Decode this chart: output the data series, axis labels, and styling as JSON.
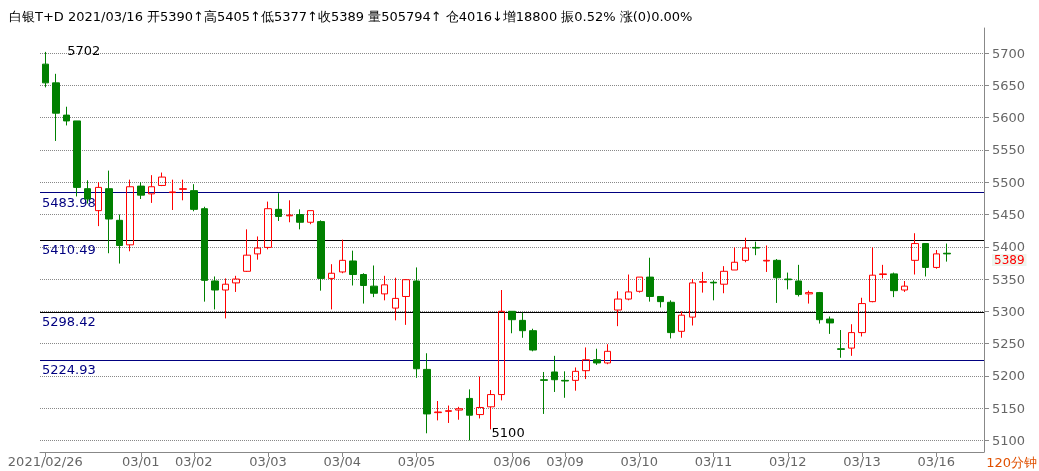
{
  "chart_data": {
    "type": "candlestick",
    "title": "白银T+D 2021/03/16 开5390↑高5405↑低5377↑收5389 量505794↑ 仓4016↓增18800 振0.52% 涨(0)0.00%",
    "categories": [
      "2021/02/26",
      null,
      null,
      null,
      null,
      null,
      null,
      null,
      null,
      "03/01",
      null,
      null,
      null,
      null,
      "03/02",
      null,
      null,
      null,
      null,
      null,
      null,
      "03/03",
      null,
      null,
      null,
      null,
      null,
      null,
      "03/04",
      null,
      null,
      null,
      null,
      null,
      null,
      "03/05",
      null,
      null,
      null,
      null,
      null,
      null,
      null,
      null,
      "03/06",
      null,
      null,
      null,
      null,
      "03/09",
      null,
      null,
      null,
      null,
      null,
      null,
      "03/10",
      null,
      null,
      null,
      null,
      null,
      null,
      "03/11",
      null,
      null,
      null,
      null,
      null,
      null,
      "03/12",
      null,
      null,
      null,
      null,
      null,
      null,
      "03/13",
      null,
      null,
      null,
      null,
      null,
      null,
      "03/16",
      null
    ],
    "ohlc": [
      [
        5683,
        5702,
        5647,
        5654
      ],
      [
        5654,
        5668,
        5564,
        5607
      ],
      [
        5604,
        5617,
        5588,
        5595
      ],
      [
        5595,
        5595,
        5478,
        5492
      ],
      [
        5490,
        5503,
        5467,
        5474
      ],
      [
        5456,
        5500,
        5432,
        5492
      ],
      [
        5490,
        5518,
        5390,
        5443
      ],
      [
        5441,
        5450,
        5374,
        5402
      ],
      [
        5403,
        5504,
        5393,
        5493
      ],
      [
        5494,
        5500,
        5474,
        5480
      ],
      [
        5482,
        5511,
        5468,
        5493
      ],
      [
        5495,
        5515,
        5494,
        5508
      ],
      [
        5484,
        5504,
        5457,
        5485
      ],
      [
        5489,
        5504,
        5472,
        5490
      ],
      [
        5487,
        5497,
        5455,
        5458
      ],
      [
        5459,
        5462,
        5315,
        5348
      ],
      [
        5347,
        5354,
        5303,
        5333
      ],
      [
        5333,
        5351,
        5289,
        5342
      ],
      [
        5344,
        5355,
        5330,
        5350
      ],
      [
        5362,
        5427,
        5361,
        5387
      ],
      [
        5389,
        5416,
        5380,
        5398
      ],
      [
        5399,
        5470,
        5396,
        5459
      ],
      [
        5458,
        5483,
        5440,
        5447
      ],
      [
        5448,
        5472,
        5438,
        5449
      ],
      [
        5450,
        5458,
        5427,
        5438
      ],
      [
        5438,
        5456,
        5435,
        5456
      ],
      [
        5439,
        5441,
        5332,
        5351
      ],
      [
        5351,
        5373,
        5303,
        5359
      ],
      [
        5361,
        5411,
        5359,
        5379
      ],
      [
        5378,
        5394,
        5340,
        5357
      ],
      [
        5357,
        5359,
        5312,
        5340
      ],
      [
        5339,
        5371,
        5322,
        5328
      ],
      [
        5327,
        5355,
        5317,
        5341
      ],
      [
        5305,
        5352,
        5286,
        5320
      ],
      [
        5323,
        5350,
        5279,
        5349
      ],
      [
        5347,
        5368,
        5197,
        5211
      ],
      [
        5210,
        5235,
        5111,
        5141
      ],
      [
        5143,
        5161,
        5131,
        5144
      ],
      [
        5145,
        5154,
        5127,
        5146
      ],
      [
        5147,
        5152,
        5132,
        5149
      ],
      [
        5165,
        5179,
        5100,
        5139
      ],
      [
        5140,
        5199,
        5134,
        5151
      ],
      [
        5152,
        5178,
        5117,
        5171
      ],
      [
        5171,
        5333,
        5162,
        5300
      ],
      [
        5300,
        5300,
        5266,
        5287
      ],
      [
        5286,
        5298,
        5259,
        5270
      ],
      [
        5270,
        5273,
        5238,
        5240
      ],
      [
        5194,
        5206,
        5141,
        5193
      ],
      [
        5206,
        5231,
        5175,
        5194
      ],
      [
        5193,
        5207,
        5166,
        5192
      ],
      [
        5193,
        5213,
        5177,
        5207
      ],
      [
        5208,
        5244,
        5195,
        5225
      ],
      [
        5225,
        5242,
        5217,
        5220
      ],
      [
        5220,
        5249,
        5218,
        5238
      ],
      [
        5302,
        5331,
        5277,
        5319
      ],
      [
        5319,
        5357,
        5317,
        5330
      ],
      [
        5331,
        5353,
        5329,
        5353
      ],
      [
        5353,
        5383,
        5315,
        5323
      ],
      [
        5323,
        5323,
        5306,
        5315
      ],
      [
        5314,
        5317,
        5258,
        5267
      ],
      [
        5269,
        5300,
        5259,
        5294
      ],
      [
        5291,
        5350,
        5278,
        5344
      ],
      [
        5345,
        5361,
        5329,
        5346
      ],
      [
        5345,
        5348,
        5317,
        5344
      ],
      [
        5342,
        5370,
        5328,
        5362
      ],
      [
        5364,
        5399,
        5364,
        5376
      ],
      [
        5379,
        5414,
        5376,
        5398
      ],
      [
        5399,
        5408,
        5387,
        5398
      ],
      [
        5378,
        5402,
        5361,
        5379
      ],
      [
        5379,
        5381,
        5313,
        5352
      ],
      [
        5350,
        5360,
        5334,
        5349
      ],
      [
        5347,
        5372,
        5323,
        5326
      ],
      [
        5327,
        5332,
        5312,
        5329
      ],
      [
        5329,
        5330,
        5281,
        5287
      ],
      [
        5288,
        5292,
        5265,
        5282
      ],
      [
        5242,
        5271,
        5228,
        5241
      ],
      [
        5243,
        5280,
        5231,
        5267
      ],
      [
        5267,
        5321,
        5261,
        5312
      ],
      [
        5315,
        5399,
        5314,
        5356
      ],
      [
        5357,
        5372,
        5351,
        5358
      ],
      [
        5358,
        5360,
        5322,
        5332
      ],
      [
        5333,
        5347,
        5330,
        5339
      ],
      [
        5379,
        5421,
        5357,
        5405
      ],
      [
        5405,
        5405,
        5354,
        5368
      ],
      [
        5368,
        5395,
        5366,
        5389
      ],
      [
        5390,
        5405,
        5377,
        5389
      ]
    ],
    "colors": [
      "#008000",
      "#008000",
      "#008000",
      "#008000",
      "#008000",
      "#ff0000",
      "#008000",
      "#008000",
      "#ff0000",
      "#008000",
      "#ff0000",
      "#ff0000",
      "#ff0000",
      "#ff0000",
      "#008000",
      "#008000",
      "#008000",
      "#ff0000",
      "#ff0000",
      "#ff0000",
      "#ff0000",
      "#ff0000",
      "#008000",
      "#ff0000",
      "#008000",
      "#ff0000",
      "#008000",
      "#ff0000",
      "#ff0000",
      "#008000",
      "#008000",
      "#008000",
      "#ff0000",
      "#ff0000",
      "#ff0000",
      "#008000",
      "#008000",
      "#ff0000",
      "#ff0000",
      "#ff0000",
      "#008000",
      "#ff0000",
      "#ff0000",
      "#ff0000",
      "#008000",
      "#008000",
      "#008000",
      "#008000",
      "#008000",
      "#008000",
      "#ff0000",
      "#ff0000",
      "#008000",
      "#ff0000",
      "#ff0000",
      "#ff0000",
      "#ff0000",
      "#008000",
      "#008000",
      "#008000",
      "#ff0000",
      "#ff0000",
      "#ff0000",
      "#008000",
      "#ff0000",
      "#ff0000",
      "#ff0000",
      "#008000",
      "#ff0000",
      "#008000",
      "#008000",
      "#008000",
      "#ff0000",
      "#008000",
      "#008000",
      "#008000",
      "#ff0000",
      "#ff0000",
      "#ff0000",
      "#ff0000",
      "#008000",
      "#ff0000",
      "#ff0000",
      "#008000",
      "#ff0000",
      "#008000"
    ],
    "ylim": [
      5082,
      5739
    ],
    "yticks": [
      5100,
      5150,
      5200,
      5250,
      5300,
      5350,
      5400,
      5450,
      5500,
      5550,
      5600,
      5650,
      5700
    ],
    "grid": "y",
    "ref_lines": [
      {
        "axis": "y",
        "value": 5483.98,
        "label": "5483.98",
        "color": "#000080"
      },
      {
        "axis": "y",
        "value": 5410.49,
        "label": "5410.49",
        "color": "#000000"
      },
      {
        "axis": "y",
        "value": 5298.42,
        "label": "5298.42",
        "color": "#000000"
      },
      {
        "axis": "y",
        "value": 5224.93,
        "label": "5224.93",
        "color": "#000080"
      }
    ],
    "annotations": [
      "5702",
      "5100",
      "5389",
      "120分钟"
    ]
  }
}
